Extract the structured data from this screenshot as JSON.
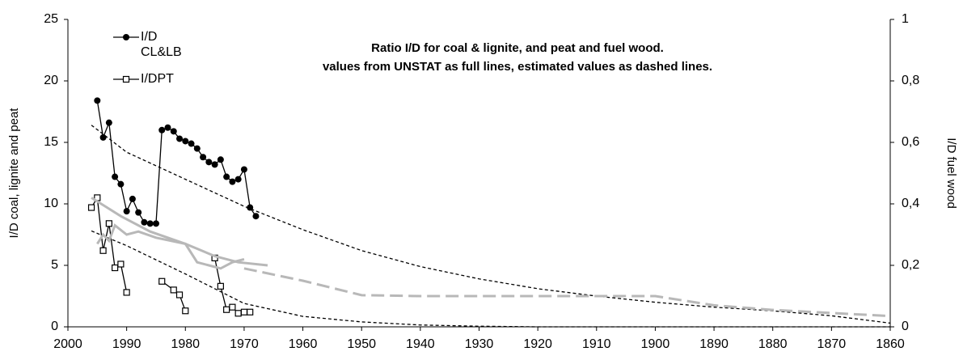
{
  "chart_data": {
    "type": "line",
    "title": "Ratio I/D for coal & lignite, and peat and fuel wood.",
    "subtitle": "values from UNSTAT as full lines, estimated values as dashed lines.",
    "y_label": "I/D coal, lignite and peat",
    "y2_label": "I/D fuel wood",
    "xlim": [
      2000,
      1860
    ],
    "xticks": [
      2000,
      1990,
      1980,
      1970,
      1960,
      1950,
      1940,
      1930,
      1920,
      1910,
      1900,
      1890,
      1880,
      1870,
      1860
    ],
    "ylim": [
      0,
      25
    ],
    "yticks": [
      0,
      5,
      10,
      15,
      20,
      25
    ],
    "y2lim": [
      0,
      1
    ],
    "y2ticks": [
      0,
      {
        "value": 0.2,
        "label": "0,2"
      },
      {
        "value": 0.4,
        "label": "0,4"
      },
      {
        "value": 0.6,
        "label": "0,6"
      },
      {
        "value": 0.8,
        "label": "0,8"
      },
      1
    ],
    "series": [
      {
        "name": "I/D CL&LB",
        "color": "#000000",
        "marker": "circle",
        "dashed": false,
        "x": [
          1995,
          1994,
          1993,
          1992,
          1991,
          1990,
          1989,
          1988,
          1987,
          1986,
          1985,
          1984,
          1983,
          1982,
          1981,
          1980,
          1979,
          1978,
          1977,
          1976,
          1975,
          1974,
          1973,
          1972,
          1971,
          1970,
          1969,
          1968
        ],
        "values": [
          18.4,
          15.4,
          16.6,
          12.2,
          11.6,
          9.4,
          10.4,
          9.3,
          8.5,
          8.4,
          8.4,
          16.0,
          16.2,
          15.9,
          15.3,
          15.1,
          14.9,
          14.5,
          13.8,
          13.4,
          13.2,
          13.6,
          12.2,
          11.8,
          12.0,
          12.8,
          9.7,
          9.0
        ]
      },
      {
        "name": "I/DPT",
        "color": "#000000",
        "marker": "square",
        "dashed": false,
        "x": [
          1996,
          1995,
          1994,
          1993,
          1992,
          1991,
          1990,
          1985,
          1984,
          1982,
          1981,
          1980,
          null,
          1975,
          1974,
          1973,
          1972,
          1971,
          1970,
          1969
        ],
        "values": [
          9.7,
          10.5,
          6.2,
          8.4,
          4.8,
          5.1,
          2.8,
          null,
          3.7,
          3.0,
          2.6,
          1.3,
          null,
          5.6,
          3.3,
          1.4,
          1.6,
          1.1,
          1.2,
          1.2
        ]
      },
      {
        "color": "#000000",
        "dashed": true,
        "x": [
          1996,
          1990,
          1980,
          1970,
          1960,
          1950,
          1940,
          1930,
          1920,
          1910,
          1900,
          1890,
          1880,
          1870,
          1860
        ],
        "values": [
          16.4,
          14.2,
          12.0,
          9.8,
          7.9,
          6.2,
          4.9,
          3.9,
          3.1,
          2.5,
          2.0,
          1.6,
          1.3,
          0.9,
          0.3
        ]
      },
      {
        "color": "#000000",
        "dashed": true,
        "x": [
          1996,
          1990,
          1980,
          1970,
          1960,
          1950,
          1940,
          1930,
          1920,
          1900,
          1880,
          1860
        ],
        "values": [
          7.8,
          6.6,
          4.3,
          1.9,
          0.85,
          0.4,
          0.15,
          0.05,
          0,
          0,
          0,
          0
        ]
      },
      {
        "color": "#b8b8b8",
        "dashed": false,
        "axis": "y2",
        "x": [
          1996,
          1991,
          1986,
          1980,
          1975,
          1971,
          1966
        ],
        "values": [
          0.42,
          0.36,
          0.31,
          0.27,
          0.23,
          0.21,
          0.2
        ]
      },
      {
        "color": "#b8b8b8",
        "dashed": false,
        "axis": "y2",
        "x": [
          1995,
          1994,
          1993,
          1992,
          1990,
          1988,
          1985,
          1980,
          1978,
          1976,
          1974,
          1972,
          1970
        ],
        "values": [
          0.27,
          0.3,
          0.28,
          0.33,
          0.3,
          0.31,
          0.29,
          0.27,
          0.21,
          0.2,
          0.19,
          0.21,
          0.22
        ]
      },
      {
        "color": "#b8b8b8",
        "dashed": true,
        "axis": "y2",
        "x": [
          1970,
          1960,
          1950,
          1940,
          1920,
          1910,
          1900,
          1890,
          1880,
          1870,
          1860
        ],
        "values": [
          0.19,
          0.15,
          0.103,
          0.1,
          0.1,
          0.1,
          0.1,
          0.07,
          0.055,
          0.045,
          0.035
        ]
      }
    ]
  }
}
